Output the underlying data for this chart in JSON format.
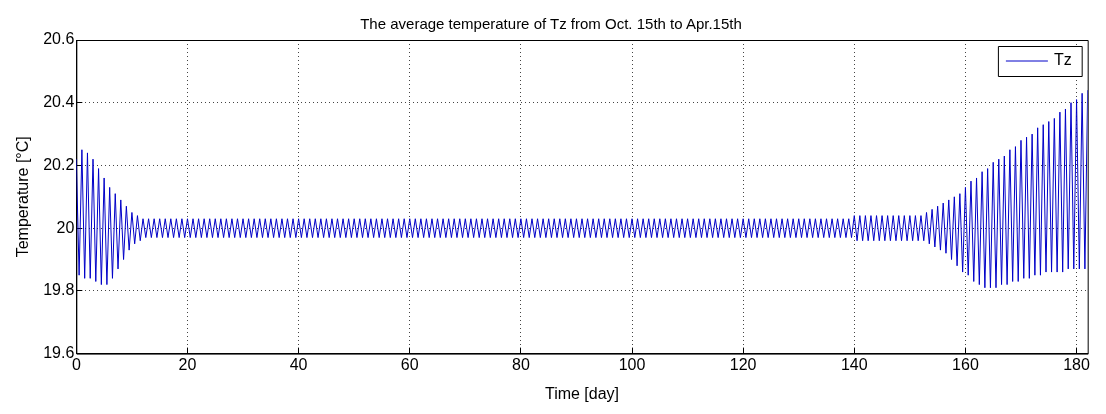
{
  "chart_data": {
    "type": "line",
    "title": "The average temperature of Tz from Oct. 15th to Apr.15th",
    "xlabel": "Time [day]",
    "ylabel": "Temperature [°C]",
    "xlim": [
      0,
      182
    ],
    "xticks": [
      0,
      20,
      40,
      60,
      80,
      100,
      120,
      140,
      160,
      180
    ],
    "ylim": [
      19.6,
      20.6
    ],
    "yticks": [
      19.6,
      19.8,
      20,
      20.2,
      20.4,
      20.6
    ],
    "grid": true,
    "legend": "top right",
    "x": [
      0,
      0.5,
      1,
      1.5,
      2,
      2.5,
      3,
      3.5,
      4,
      4.5,
      5,
      5.5,
      6,
      6.5,
      7,
      7.5,
      8,
      8.5,
      9,
      9.5,
      10,
      10.5,
      11,
      11.5,
      12,
      12.5,
      13,
      13.5,
      14,
      14.5,
      15,
      15.5,
      16,
      16.5,
      17,
      17.5,
      18,
      18.5,
      19,
      19.5,
      20,
      20.5,
      21,
      21.5,
      22,
      22.5,
      23,
      23.5,
      24,
      24.5,
      25,
      25.5,
      26,
      26.5,
      27,
      27.5,
      28,
      28.5,
      29,
      29.5,
      30,
      30.5,
      31,
      31.5,
      32,
      32.5,
      33,
      33.5,
      34,
      34.5,
      35,
      35.5,
      36,
      36.5,
      37,
      37.5,
      38,
      38.5,
      39,
      39.5,
      40,
      40.5,
      41,
      41.5,
      42,
      42.5,
      43,
      43.5,
      44,
      44.5,
      45,
      45.5,
      46,
      46.5,
      47,
      47.5,
      48,
      48.5,
      49,
      49.5,
      50,
      50.5,
      51,
      51.5,
      52,
      52.5,
      53,
      53.5,
      54,
      54.5,
      55,
      55.5,
      56,
      56.5,
      57,
      57.5,
      58,
      58.5,
      59,
      59.5,
      60,
      60.5,
      61,
      61.5,
      62,
      62.5,
      63,
      63.5,
      64,
      64.5,
      65,
      65.5,
      66,
      66.5,
      67,
      67.5,
      68,
      68.5,
      69,
      69.5,
      70,
      70.5,
      71,
      71.5,
      72,
      72.5,
      73,
      73.5,
      74,
      74.5,
      75,
      75.5,
      76,
      76.5,
      77,
      77.5,
      78,
      78.5,
      79,
      79.5,
      80,
      80.5,
      81,
      81.5,
      82,
      82.5,
      83,
      83.5,
      84,
      84.5,
      85,
      85.5,
      86,
      86.5,
      87,
      87.5,
      88,
      88.5,
      89,
      89.5,
      90,
      90.5,
      91,
      91.5,
      92,
      92.5,
      93,
      93.5,
      94,
      94.5,
      95,
      95.5,
      96,
      96.5,
      97,
      97.5,
      98,
      98.5,
      99,
      99.5,
      100,
      100.5,
      101,
      101.5,
      102,
      102.5,
      103,
      103.5,
      104,
      104.5,
      105,
      105.5,
      106,
      106.5,
      107,
      107.5,
      108,
      108.5,
      109,
      109.5,
      110,
      110.5,
      111,
      111.5,
      112,
      112.5,
      113,
      113.5,
      114,
      114.5,
      115,
      115.5,
      116,
      116.5,
      117,
      117.5,
      118,
      118.5,
      119,
      119.5,
      120,
      120.5,
      121,
      121.5,
      122,
      122.5,
      123,
      123.5,
      124,
      124.5,
      125,
      125.5,
      126,
      126.5,
      127,
      127.5,
      128,
      128.5,
      129,
      129.5,
      130,
      130.5,
      131,
      131.5,
      132,
      132.5,
      133,
      133.5,
      134,
      134.5,
      135,
      135.5,
      136,
      136.5,
      137,
      137.5,
      138,
      138.5,
      139,
      139.5,
      140,
      140.5,
      141,
      141.5,
      142,
      142.5,
      143,
      143.5,
      144,
      144.5,
      145,
      145.5,
      146,
      146.5,
      147,
      147.5,
      148,
      148.5,
      149,
      149.5,
      150,
      150.5,
      151,
      151.5,
      152,
      152.5,
      153,
      153.5,
      154,
      154.5,
      155,
      155.5,
      156,
      156.5,
      157,
      157.5,
      158,
      158.5,
      159,
      159.5,
      160,
      160.5,
      161,
      161.5,
      162,
      162.5,
      163,
      163.5,
      164,
      164.5,
      165,
      165.5,
      166,
      166.5,
      167,
      167.5,
      168,
      168.5,
      169,
      169.5,
      170,
      170.5,
      171,
      171.5,
      172,
      172.5,
      173,
      173.5,
      174,
      174.5,
      175,
      175.5,
      176,
      176.5,
      177,
      177.5,
      178,
      178.5,
      179,
      179.5,
      180,
      180.5,
      181,
      181.5,
      182
    ],
    "series": [
      {
        "name": "Tz",
        "color": "#0000c8",
        "values": [
          20.22,
          19.85,
          20.25,
          19.84,
          20.24,
          19.84,
          20.22,
          19.83,
          20.19,
          19.82,
          20.16,
          19.82,
          20.13,
          19.84,
          20.11,
          19.87,
          20.09,
          19.9,
          20.07,
          19.93,
          20.05,
          19.95,
          20.04,
          19.96,
          20.03,
          19.97,
          20.03,
          19.97,
          20.03,
          19.97,
          20.03,
          19.97,
          20.03,
          19.97,
          20.03,
          19.97,
          20.03,
          19.97,
          20.03,
          19.97,
          20.03,
          19.97,
          20.03,
          19.97,
          20.03,
          19.97,
          20.03,
          19.97,
          20.03,
          19.97,
          20.03,
          19.97,
          20.03,
          19.97,
          20.03,
          19.97,
          20.03,
          19.97,
          20.03,
          19.97,
          20.03,
          19.97,
          20.03,
          19.97,
          20.03,
          19.97,
          20.03,
          19.97,
          20.03,
          19.97,
          20.03,
          19.97,
          20.03,
          19.97,
          20.03,
          19.97,
          20.03,
          19.97,
          20.03,
          19.97,
          20.03,
          19.97,
          20.03,
          19.97,
          20.03,
          19.97,
          20.03,
          19.97,
          20.03,
          19.97,
          20.03,
          19.97,
          20.03,
          19.97,
          20.03,
          19.97,
          20.03,
          19.97,
          20.03,
          19.97,
          20.03,
          19.97,
          20.03,
          19.97,
          20.03,
          19.97,
          20.03,
          19.97,
          20.03,
          19.97,
          20.03,
          19.97,
          20.03,
          19.97,
          20.03,
          19.97,
          20.03,
          19.97,
          20.03,
          19.97,
          20.03,
          19.97,
          20.03,
          19.97,
          20.03,
          19.97,
          20.03,
          19.97,
          20.03,
          19.97,
          20.03,
          19.97,
          20.03,
          19.97,
          20.03,
          19.97,
          20.03,
          19.97,
          20.03,
          19.97,
          20.03,
          19.97,
          20.03,
          19.97,
          20.03,
          19.97,
          20.03,
          19.97,
          20.03,
          19.97,
          20.03,
          19.97,
          20.03,
          19.97,
          20.03,
          19.97,
          20.03,
          19.97,
          20.03,
          19.97,
          20.03,
          19.97,
          20.03,
          19.97,
          20.03,
          19.97,
          20.03,
          19.97,
          20.03,
          19.97,
          20.03,
          19.97,
          20.03,
          19.97,
          20.03,
          19.97,
          20.03,
          19.97,
          20.03,
          19.97,
          20.03,
          19.97,
          20.03,
          19.97,
          20.03,
          19.97,
          20.03,
          19.97,
          20.03,
          19.97,
          20.03,
          19.97,
          20.03,
          19.97,
          20.03,
          19.97,
          20.03,
          19.97,
          20.03,
          19.97,
          20.03,
          19.97,
          20.03,
          19.97,
          20.03,
          19.97,
          20.03,
          19.97,
          20.03,
          19.97,
          20.03,
          19.97,
          20.03,
          19.97,
          20.03,
          19.97,
          20.03,
          19.97,
          20.03,
          19.97,
          20.03,
          19.97,
          20.03,
          19.97,
          20.03,
          19.97,
          20.03,
          19.97,
          20.03,
          19.97,
          20.03,
          19.97,
          20.03,
          19.97,
          20.03,
          19.97,
          20.03,
          19.97,
          20.03,
          19.97,
          20.03,
          19.97,
          20.03,
          19.97,
          20.03,
          19.97,
          20.03,
          19.97,
          20.03,
          19.97,
          20.03,
          19.97,
          20.03,
          19.97,
          20.03,
          19.97,
          20.03,
          19.97,
          20.03,
          19.97,
          20.03,
          19.97,
          20.03,
          19.97,
          20.03,
          19.97,
          20.03,
          19.97,
          20.03,
          19.97,
          20.03,
          19.97,
          20.03,
          19.97,
          20.03,
          19.97,
          20.03,
          19.97,
          20.03,
          19.97,
          20.04,
          19.96,
          20.04,
          19.96,
          20.04,
          19.96,
          20.04,
          19.96,
          20.04,
          19.96,
          20.04,
          19.96,
          20.04,
          19.96,
          20.04,
          19.96,
          20.04,
          19.96,
          20.04,
          19.96,
          20.04,
          19.96,
          20.04,
          19.96,
          20.04,
          19.96,
          20.05,
          19.95,
          20.06,
          19.94,
          20.07,
          19.93,
          20.08,
          19.92,
          20.09,
          19.9,
          20.1,
          19.88,
          20.11,
          19.86,
          20.13,
          19.85,
          20.15,
          19.83,
          20.16,
          19.82,
          20.18,
          19.81,
          20.19,
          19.81,
          20.21,
          19.81,
          20.22,
          19.82,
          20.23,
          19.82,
          20.25,
          19.83,
          20.26,
          19.83,
          20.28,
          19.84,
          20.29,
          19.84,
          20.3,
          19.85,
          20.32,
          19.85,
          20.33,
          19.86,
          20.34,
          19.86,
          20.35,
          19.86,
          20.37,
          19.86,
          20.38,
          19.87,
          20.4,
          19.87,
          20.41,
          19.87,
          20.43,
          19.87,
          20.44
        ]
      }
    ]
  }
}
